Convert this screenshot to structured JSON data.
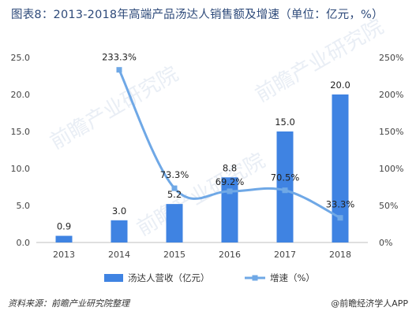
{
  "title": "图表8：2013-2018年高端产品汤达人销售额及增速（单位：亿元，%）",
  "chart_data": {
    "type": "bar+line",
    "categories": [
      "2013",
      "2014",
      "2015",
      "2016",
      "2017",
      "2018"
    ],
    "series": [
      {
        "name": "汤达人营收（亿元）",
        "type": "bar",
        "axis": "left",
        "color": "#3f83e2",
        "values": [
          0.9,
          3.0,
          5.2,
          8.8,
          15.0,
          20.0
        ],
        "labels": [
          "0.9",
          "3.0",
          "5.2",
          "8.8",
          "15.0",
          "20.0"
        ]
      },
      {
        "name": "增速（%）",
        "type": "line",
        "axis": "right",
        "color": "#6fa8e6",
        "values": [
          null,
          233.3,
          73.3,
          69.2,
          70.5,
          33.3
        ],
        "labels": [
          "",
          "233.3%",
          "73.3%",
          "69.2%",
          "70.5%",
          "33.3%"
        ]
      }
    ],
    "y_left": {
      "min": 0,
      "max": 25,
      "ticks": [
        "0.0",
        "5.0",
        "10.0",
        "15.0",
        "20.0",
        "25.0"
      ]
    },
    "y_right": {
      "min": 0,
      "max": 250,
      "ticks": [
        "0%",
        "50%",
        "100%",
        "150%",
        "200%",
        "250%"
      ]
    },
    "grid": false,
    "legend": "bottom"
  },
  "footer": {
    "source": "资料来源：前瞻产业研究院整理",
    "brand": "@前瞻经济学人APP"
  },
  "watermark": "前瞻产业研究院"
}
